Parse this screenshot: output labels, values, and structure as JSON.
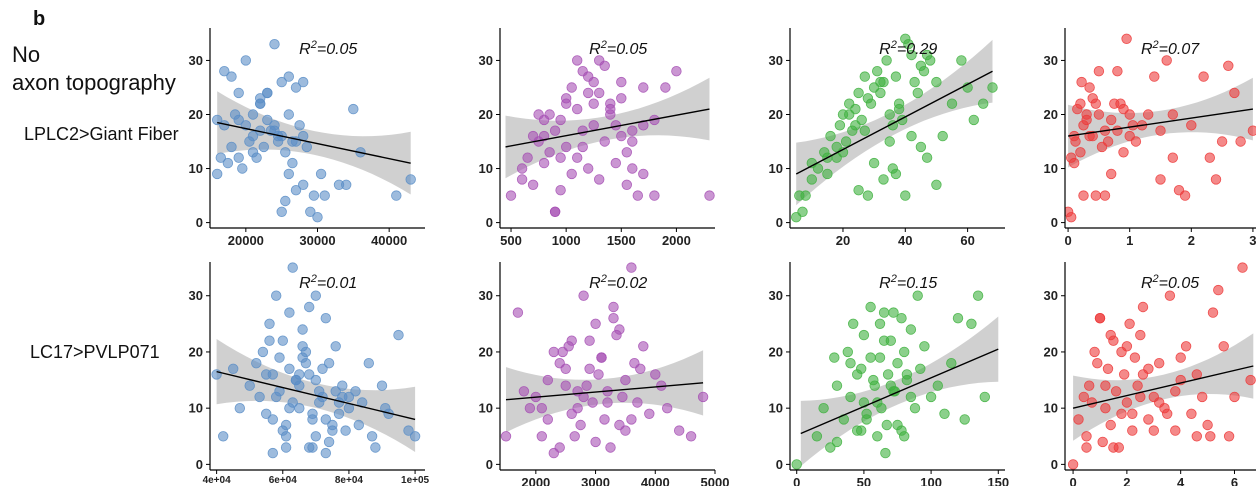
{
  "panel_letter": "b",
  "header_line1": "No",
  "header_line2": "axon topography",
  "row_labels": [
    "LPLC2>Giant Fiber",
    "LC17>PVLP071"
  ],
  "colors": {
    "blue": "#5b8ec7",
    "purple": "#a650b4",
    "green": "#3fb13f",
    "red": "#ec3a3a",
    "band": "#c8c8c8",
    "fit": "#000000"
  },
  "chart_data": [
    {
      "type": "scatter",
      "row": 0,
      "col": 0,
      "color": "blue",
      "r2": "0.05",
      "xlim": [
        15000,
        45000
      ],
      "ylim": [
        -1,
        36
      ],
      "xticks": [
        20000,
        30000,
        40000
      ],
      "xtick_labels": [
        "20000",
        "30000",
        "40000"
      ],
      "yticks": [
        0,
        10,
        20,
        30
      ],
      "ytick_labels": [
        "0",
        "10",
        "20",
        "30"
      ],
      "fit": [
        [
          16000,
          18.5
        ],
        [
          43000,
          11
        ]
      ],
      "x": [
        16000,
        17000,
        18000,
        19000,
        20000,
        21000,
        22000,
        23000,
        24000,
        25000,
        26000,
        27000,
        28000,
        18000,
        19000,
        21000,
        22000,
        23000,
        24000,
        25000,
        26000,
        27000,
        16000,
        17500,
        19500,
        20500,
        21500,
        22500,
        23500,
        24500,
        25500,
        26500,
        27500,
        28500,
        29000,
        30000,
        31000,
        33000,
        35000,
        36000,
        41000,
        43000,
        17000,
        22000,
        24000,
        26000,
        28000,
        20000,
        23000,
        25000,
        27000,
        21000,
        16500,
        18500,
        25500,
        29500,
        34000,
        19000,
        22000,
        24500,
        26500,
        28000,
        30500
      ],
      "y": [
        19,
        18,
        27,
        24,
        30,
        20,
        22,
        24,
        33,
        26,
        27,
        25,
        26,
        14,
        12,
        13,
        17,
        19,
        18,
        16,
        20,
        15,
        9,
        11,
        10,
        15,
        12,
        14,
        17,
        16,
        13,
        15,
        18,
        14,
        2,
        1,
        5,
        7,
        21,
        13,
        5,
        8,
        28,
        22,
        17,
        9,
        7,
        18,
        24,
        2,
        6,
        16,
        12,
        20,
        4,
        5,
        7,
        19,
        23,
        15,
        11,
        16,
        9
      ]
    },
    {
      "type": "scatter",
      "row": 0,
      "col": 1,
      "color": "purple",
      "r2": "0.05",
      "xlim": [
        400,
        2350
      ],
      "ylim": [
        -1,
        36
      ],
      "xticks": [
        500,
        1000,
        1500,
        2000
      ],
      "xtick_labels": [
        "500",
        "1000",
        "1500",
        "2000"
      ],
      "yticks": [
        0,
        10,
        20,
        30
      ],
      "ytick_labels": [
        "0",
        "10",
        "20",
        "30"
      ],
      "fit": [
        [
          450,
          14
        ],
        [
          2300,
          21
        ]
      ],
      "x": [
        500,
        600,
        650,
        700,
        750,
        800,
        850,
        900,
        950,
        1000,
        1050,
        1100,
        1150,
        1200,
        1250,
        1300,
        1350,
        1400,
        1450,
        1500,
        1550,
        1600,
        1650,
        1700,
        1800,
        1900,
        2000,
        2300,
        700,
        800,
        900,
        1000,
        1100,
        1200,
        1300,
        1400,
        1500,
        1600,
        1700,
        750,
        850,
        950,
        1050,
        1150,
        1250,
        1350,
        1450,
        1550,
        600,
        900,
        1200,
        1500,
        1800,
        1000,
        1100,
        1300,
        800,
        950,
        1150,
        1250,
        1400,
        1600,
        1700
      ],
      "y": [
        5,
        10,
        12,
        7,
        15,
        11,
        20,
        2,
        19,
        22,
        25,
        30,
        28,
        24,
        26,
        30,
        29,
        22,
        18,
        16,
        13,
        10,
        5,
        18,
        5,
        25,
        28,
        5,
        16,
        19,
        17,
        14,
        12,
        10,
        8,
        21,
        23,
        15,
        9,
        20,
        13,
        6,
        9,
        17,
        18,
        15,
        11,
        7,
        8,
        2,
        27,
        26,
        19,
        23,
        21,
        24,
        16,
        12,
        14,
        22,
        20,
        17,
        25
      ]
    },
    {
      "type": "scatter",
      "row": 0,
      "col": 2,
      "color": "green",
      "r2": "0.29",
      "xlim": [
        3,
        72
      ],
      "ylim": [
        -1,
        36
      ],
      "xticks": [
        20,
        40,
        60
      ],
      "xtick_labels": [
        "20",
        "40",
        "60"
      ],
      "yticks": [
        0,
        10,
        20,
        30
      ],
      "ytick_labels": [
        "0",
        "10",
        "20",
        "30"
      ],
      "fit": [
        [
          5,
          9
        ],
        [
          68,
          28
        ]
      ],
      "x": [
        5,
        6,
        7,
        8,
        10,
        12,
        14,
        15,
        16,
        18,
        19,
        20,
        21,
        22,
        23,
        24,
        25,
        26,
        27,
        28,
        29,
        30,
        31,
        32,
        33,
        34,
        35,
        36,
        37,
        38,
        39,
        40,
        41,
        42,
        43,
        44,
        45,
        46,
        47,
        48,
        50,
        52,
        55,
        58,
        60,
        62,
        65,
        68,
        10,
        15,
        20,
        25,
        30,
        35,
        40,
        45,
        50,
        22,
        27,
        32,
        37,
        42,
        47,
        28,
        33,
        38,
        18,
        24,
        36
      ],
      "y": [
        1,
        5,
        2,
        5,
        11,
        10,
        13,
        12,
        16,
        14,
        18,
        20,
        15,
        22,
        17,
        21,
        24,
        19,
        27,
        23,
        22,
        25,
        28,
        24,
        26,
        30,
        20,
        18,
        27,
        22,
        19,
        34,
        33,
        31,
        26,
        24,
        29,
        28,
        31,
        30,
        26,
        16,
        22,
        30,
        25,
        19,
        22,
        25,
        8,
        9,
        13,
        6,
        11,
        15,
        5,
        14,
        7,
        20,
        17,
        26,
        9,
        16,
        12,
        5,
        8,
        21,
        12,
        18,
        10
      ]
    },
    {
      "type": "scatter",
      "row": 0,
      "col": 3,
      "color": "red",
      "r2": "0.07",
      "xlim": [
        -0.05,
        3.05
      ],
      "ylim": [
        -1,
        36
      ],
      "xticks": [
        0,
        1,
        2,
        3
      ],
      "xtick_labels": [
        "0",
        "1",
        "2",
        "3"
      ],
      "yticks": [
        0,
        10,
        20,
        30
      ],
      "ytick_labels": [
        "0",
        "10",
        "20",
        "30"
      ],
      "fit": [
        [
          0,
          16
        ],
        [
          3,
          21
        ]
      ],
      "x": [
        0,
        0.05,
        0.1,
        0.12,
        0.15,
        0.2,
        0.22,
        0.25,
        0.3,
        0.35,
        0.4,
        0.45,
        0.5,
        0.55,
        0.6,
        0.65,
        0.7,
        0.75,
        0.8,
        0.85,
        0.9,
        0.95,
        1.0,
        1.05,
        1.1,
        1.2,
        1.3,
        1.4,
        1.5,
        1.6,
        1.7,
        1.8,
        1.9,
        2.0,
        2.2,
        2.4,
        2.5,
        2.6,
        2.8,
        3.0,
        0.1,
        0.2,
        0.3,
        0.4,
        0.5,
        0.6,
        0.7,
        0.8,
        0.9,
        1.0,
        0.05,
        0.25,
        0.35,
        0.45,
        1.5,
        1.7,
        2.3,
        2.7
      ],
      "y": [
        2,
        12,
        16,
        15,
        21,
        22,
        26,
        5,
        19,
        25,
        16,
        5,
        20,
        14,
        17,
        15,
        9,
        22,
        28,
        22,
        21,
        34,
        16,
        18,
        15,
        18,
        20,
        27,
        8,
        30,
        12,
        6,
        5,
        18,
        27,
        8,
        15,
        29,
        15,
        17,
        11,
        13,
        20,
        23,
        28,
        5,
        19,
        17,
        13,
        20,
        1,
        18,
        16,
        22,
        17,
        20,
        12,
        24
      ]
    },
    {
      "type": "scatter",
      "row": 1,
      "col": 0,
      "color": "blue",
      "r2": "0.01",
      "xlim": [
        38000,
        103000
      ],
      "ylim": [
        -1,
        36
      ],
      "xticks": [
        40000,
        60000,
        80000,
        100000
      ],
      "xtick_labels": [
        "4e+04",
        "6e+04",
        "8e+04",
        "1e+05"
      ],
      "yticks": [
        0,
        10,
        20,
        30
      ],
      "ytick_labels": [
        "0",
        "10",
        "20",
        "30"
      ],
      "fit": [
        [
          40000,
          16.5
        ],
        [
          100000,
          8
        ]
      ],
      "x": [
        40000,
        42000,
        45000,
        47000,
        50000,
        52000,
        53000,
        54000,
        55000,
        56000,
        57000,
        58000,
        59000,
        60000,
        61000,
        62000,
        63000,
        64000,
        65000,
        66000,
        67000,
        68000,
        69000,
        70000,
        71000,
        72000,
        73000,
        74000,
        75000,
        76000,
        77000,
        78000,
        79000,
        80000,
        82000,
        84000,
        86000,
        88000,
        90000,
        92000,
        95000,
        98000,
        100000,
        55000,
        58000,
        61000,
        64000,
        67000,
        70000,
        73000,
        76000,
        56000,
        59000,
        62000,
        65000,
        68000,
        71000,
        74000,
        77000,
        80000,
        57000,
        60000,
        63000,
        66000,
        69000,
        72000,
        75000,
        78000,
        83000,
        87000,
        91000,
        57000,
        61000,
        65000,
        69000,
        73000,
        66000,
        70000,
        62000,
        68000
      ],
      "y": [
        16,
        5,
        17,
        10,
        14,
        18,
        12,
        20,
        16,
        25,
        8,
        30,
        13,
        22,
        5,
        17,
        35,
        15,
        10,
        24,
        20,
        28,
        3,
        15,
        11,
        12,
        26,
        18,
        7,
        21,
        9,
        14,
        6,
        10,
        13,
        11,
        18,
        3,
        14,
        9,
        23,
        6,
        5,
        9,
        12,
        7,
        15,
        18,
        5,
        8,
        13,
        22,
        19,
        10,
        16,
        3,
        13,
        4,
        11,
        12,
        2,
        6,
        11,
        21,
        9,
        17,
        6,
        12,
        7,
        5,
        10,
        16,
        3,
        14,
        8,
        2,
        19,
        30,
        27,
        16
      ]
    },
    {
      "type": "scatter",
      "row": 1,
      "col": 1,
      "color": "purple",
      "r2": "0.02",
      "xlim": [
        1400,
        5000
      ],
      "ylim": [
        -1,
        36
      ],
      "xticks": [
        2000,
        3000,
        4000,
        5000
      ],
      "xtick_labels": [
        "2000",
        "3000",
        "4000",
        "5000"
      ],
      "yticks": [
        0,
        10,
        20,
        30
      ],
      "ytick_labels": [
        "0",
        "10",
        "20",
        "30"
      ],
      "fit": [
        [
          1500,
          11.5
        ],
        [
          4800,
          14.5
        ]
      ],
      "x": [
        1500,
        1700,
        1900,
        2000,
        2100,
        2200,
        2300,
        2400,
        2500,
        2600,
        2700,
        2800,
        2900,
        3000,
        3100,
        3200,
        3300,
        3400,
        3500,
        3600,
        3700,
        3800,
        3900,
        4000,
        4200,
        4400,
        4600,
        4800,
        2200,
        2400,
        2600,
        2800,
        3000,
        3200,
        3400,
        3600,
        2300,
        2500,
        2700,
        2900,
        3100,
        3300,
        3500,
        2100,
        2450,
        2750,
        3050,
        3350,
        3650,
        2650,
        2850,
        3150,
        3450,
        2550,
        2950,
        3250,
        1800,
        3750,
        4100
      ],
      "y": [
        5,
        27,
        10,
        12,
        5,
        8,
        20,
        3,
        14,
        22,
        10,
        30,
        17,
        25,
        19,
        13,
        28,
        7,
        15,
        35,
        11,
        21,
        9,
        16,
        10,
        6,
        5,
        12,
        15,
        18,
        9,
        12,
        4,
        11,
        24,
        8,
        2,
        17,
        13,
        22,
        19,
        26,
        6,
        10,
        20,
        7,
        16,
        23,
        18,
        5,
        14,
        8,
        12,
        21,
        11,
        3,
        13,
        17,
        14
      ]
    },
    {
      "type": "scatter",
      "row": 1,
      "col": 2,
      "color": "green",
      "r2": "0.15",
      "xlim": [
        -5,
        155
      ],
      "ylim": [
        -1,
        36
      ],
      "xticks": [
        0,
        50,
        100,
        150
      ],
      "xtick_labels": [
        "0",
        "50",
        "100",
        "150"
      ],
      "yticks": [
        0,
        10,
        20,
        30
      ],
      "ytick_labels": [
        "0",
        "10",
        "20",
        "30"
      ],
      "fit": [
        [
          3,
          5.5
        ],
        [
          150,
          20.5
        ]
      ],
      "x": [
        0,
        15,
        20,
        25,
        30,
        35,
        38,
        40,
        42,
        45,
        48,
        50,
        52,
        55,
        57,
        60,
        62,
        65,
        67,
        70,
        72,
        75,
        78,
        80,
        82,
        85,
        88,
        90,
        95,
        100,
        105,
        110,
        115,
        120,
        125,
        130,
        135,
        140,
        45,
        50,
        55,
        60,
        65,
        70,
        75,
        80,
        85,
        40,
        52,
        58,
        63,
        68,
        73,
        78,
        30,
        62,
        72,
        82,
        92,
        28,
        48,
        66
      ],
      "y": [
        0,
        5,
        10,
        3,
        14,
        8,
        20,
        12,
        25,
        6,
        17,
        23,
        9,
        28,
        15,
        11,
        19,
        27,
        7,
        22,
        13,
        18,
        26,
        5,
        16,
        24,
        10,
        30,
        21,
        12,
        14,
        9,
        18,
        26,
        8,
        25,
        30,
        12,
        16,
        11,
        19,
        5,
        22,
        14,
        7,
        20,
        12,
        18,
        8,
        14,
        10,
        16,
        13,
        6,
        4,
        25,
        27,
        15,
        17,
        19,
        6,
        2
      ]
    },
    {
      "type": "scatter",
      "row": 1,
      "col": 3,
      "color": "red",
      "r2": "0.05",
      "xlim": [
        -0.3,
        6.8
      ],
      "ylim": [
        -1,
        36
      ],
      "xticks": [
        0,
        2,
        4,
        6
      ],
      "xtick_labels": [
        "0",
        "2",
        "4",
        "6"
      ],
      "yticks": [
        0,
        10,
        20,
        30
      ],
      "ytick_labels": [
        "0",
        "10",
        "20",
        "30"
      ],
      "fit": [
        [
          0,
          10
        ],
        [
          6.7,
          17.5
        ]
      ],
      "x": [
        0,
        0.2,
        0.4,
        0.5,
        0.6,
        0.8,
        1.0,
        1.1,
        1.2,
        1.3,
        1.4,
        1.5,
        1.6,
        1.7,
        1.8,
        1.9,
        2.0,
        2.1,
        2.2,
        2.3,
        2.4,
        2.5,
        2.6,
        2.8,
        3.0,
        3.2,
        3.4,
        3.6,
        3.8,
        4.0,
        4.2,
        4.4,
        4.6,
        4.8,
        5.0,
        5.2,
        5.4,
        5.6,
        5.8,
        6.0,
        6.3,
        6.6,
        0.7,
        0.9,
        1.5,
        2.0,
        2.5,
        3.0,
        3.5,
        1.0,
        1.8,
        2.6,
        3.2,
        4.0,
        0.5,
        1.2,
        2.2,
        3.8,
        4.6,
        1.4,
        2.8,
        5.1
      ],
      "y": [
        0,
        8,
        12,
        5,
        14,
        20,
        26,
        4,
        10,
        17,
        7,
        22,
        13,
        3,
        9,
        16,
        11,
        25,
        6,
        19,
        14,
        23,
        28,
        8,
        12,
        18,
        10,
        30,
        6,
        15,
        21,
        9,
        5,
        12,
        7,
        27,
        31,
        21,
        5,
        12,
        35,
        15,
        11,
        18,
        3,
        21,
        12,
        6,
        9,
        26,
        20,
        16,
        11,
        19,
        3,
        14,
        9,
        13,
        16,
        23,
        17,
        5
      ]
    }
  ]
}
